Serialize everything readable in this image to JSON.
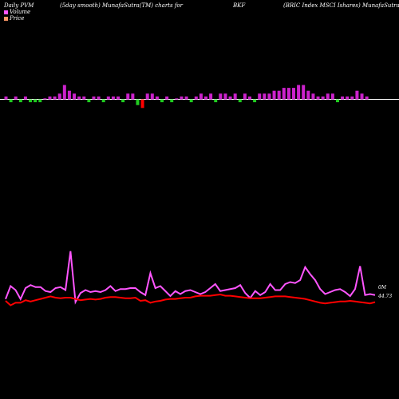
{
  "header": {
    "left": "Daily PVM",
    "center": "(5day smooth) MunafaSutra(TM) charts for",
    "symbol": "BKF",
    "right": "(BRIC Index MSCI Ishares) MunafaSutra.com"
  },
  "legend": [
    {
      "label": "Volume",
      "color": "#ff55ff"
    },
    {
      "label": "Price",
      "color": "#ff9966"
    }
  ],
  "colors": {
    "background": "#000000",
    "up_bar": "#cc22cc",
    "down_bar": "#22cc22",
    "red_bar": "#ff0000",
    "baseline": "#ffffff",
    "volume_line": "#ff55ff",
    "price_line": "#ff0000"
  },
  "chart_data": [
    {
      "type": "bar",
      "values": [
        1,
        -1,
        1,
        -1,
        1,
        -1,
        -1,
        -1,
        0,
        1,
        1,
        2,
        5,
        3,
        2,
        1,
        1,
        -1,
        1,
        1,
        -1,
        1,
        1,
        1,
        -1,
        2,
        2,
        -2,
        -3,
        2,
        2,
        1,
        -1,
        1,
        -1,
        0,
        1,
        1,
        -1,
        1,
        2,
        1,
        2,
        -1,
        2,
        2,
        1,
        2,
        -1,
        2,
        1,
        -1,
        2,
        2,
        2,
        3,
        3,
        4,
        4,
        4,
        5,
        5,
        3,
        2,
        1,
        1,
        2,
        2,
        -1,
        1,
        1,
        1,
        3,
        2,
        1
      ],
      "colors": [
        "up",
        "down",
        "up",
        "down",
        "up",
        "down",
        "down",
        "down",
        "up",
        "up",
        "up",
        "up",
        "up",
        "up",
        "up",
        "up",
        "up",
        "down",
        "up",
        "up",
        "down",
        "up",
        "up",
        "up",
        "down",
        "up",
        "up",
        "down",
        "red",
        "up",
        "up",
        "up",
        "down",
        "up",
        "down",
        "up",
        "up",
        "up",
        "down",
        "up",
        "up",
        "up",
        "up",
        "down",
        "up",
        "up",
        "up",
        "up",
        "down",
        "up",
        "up",
        "down",
        "up",
        "up",
        "up",
        "up",
        "up",
        "up",
        "up",
        "up",
        "up",
        "up",
        "up",
        "up",
        "up",
        "up",
        "up",
        "up",
        "down",
        "up",
        "up",
        "up",
        "up",
        "up",
        "up"
      ]
    },
    {
      "type": "line",
      "series": [
        {
          "values": [
            0.5,
            1.8,
            1.4,
            0.5,
            1.6,
            1.9,
            1.7,
            1.7,
            1.3,
            1.2,
            1.6,
            1.7,
            1.4,
            5.3,
            0.2,
            1.1,
            1.4,
            1.2,
            1.3,
            1.2,
            1.4,
            1.8,
            1.3,
            1.5,
            1.5,
            1.6,
            1.6,
            1.2,
            0.9,
            3.1,
            1.6,
            1.8,
            1.3,
            0.8,
            1.3,
            1.0,
            1.3,
            1.4,
            1.2,
            1.0,
            1.2,
            1.6,
            2.0,
            1.3,
            1.4,
            1.5,
            1.6,
            1.9,
            1.1,
            0.6,
            1.3,
            0.9,
            1.2,
            2.0,
            1.4,
            1.4,
            2.0,
            2.2,
            2.1,
            2.4,
            3.7,
            3.0,
            2.4,
            1.5,
            1.0,
            1.2,
            1.4,
            1.5,
            1.2,
            0.8,
            1.5,
            3.8,
            0.9,
            1.0,
            0.9
          ]
        },
        {
          "values": [
            44.5,
            43.8,
            44.2,
            44.2,
            44.6,
            44.4,
            44.6,
            44.8,
            45.0,
            45.2,
            45.0,
            44.9,
            45.0,
            45.0,
            44.8,
            44.6,
            44.7,
            44.8,
            44.7,
            44.8,
            45.0,
            45.1,
            45.1,
            45.0,
            44.9,
            44.9,
            45.0,
            44.5,
            44.6,
            44.2,
            44.4,
            44.5,
            44.7,
            44.8,
            44.8,
            44.9,
            45.0,
            45.0,
            45.2,
            45.3,
            45.3,
            45.3,
            45.4,
            45.5,
            45.3,
            45.3,
            45.2,
            45.1,
            45.0,
            44.9,
            44.9,
            44.9,
            45.0,
            45.1,
            45.2,
            45.2,
            45.2,
            45.1,
            45.0,
            44.9,
            44.8,
            44.6,
            44.4,
            44.2,
            44.1,
            44.2,
            44.3,
            44.4,
            44.4,
            44.5,
            44.4,
            44.3,
            44.2,
            44.1,
            44.3
          ]
        }
      ],
      "annotations": [
        "0M",
        "44.73"
      ]
    }
  ]
}
